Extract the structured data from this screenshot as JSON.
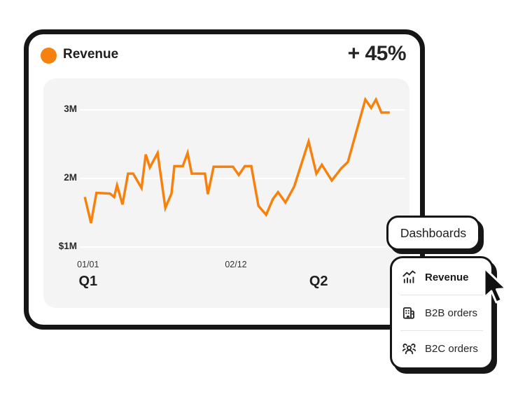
{
  "header": {
    "legend_label": "Revenue",
    "delta": "+ 45%"
  },
  "chart_data": {
    "type": "line",
    "title": "Revenue",
    "series_name": "Revenue",
    "unit": "USD millions",
    "line_color": "#F6820D",
    "grid": true,
    "ylim": [
      1,
      3.3
    ],
    "y_ticks": [
      {
        "label": "3M",
        "value": 3
      },
      {
        "label": "2M",
        "value": 2
      },
      {
        "label": "$1M",
        "value": 1
      }
    ],
    "x_ticks": [
      {
        "label": "01/01",
        "pos": 0.017
      },
      {
        "label": "02/12",
        "pos": 0.476
      }
    ],
    "quarter_labels": [
      {
        "label": "Q1",
        "pos": 0.017
      },
      {
        "label": "Q2",
        "pos": 0.733
      }
    ],
    "points": [
      [
        0.007,
        1.73
      ],
      [
        0.026,
        1.35
      ],
      [
        0.043,
        1.79
      ],
      [
        0.085,
        1.78
      ],
      [
        0.098,
        1.73
      ],
      [
        0.107,
        1.9
      ],
      [
        0.124,
        1.62
      ],
      [
        0.141,
        2.07
      ],
      [
        0.157,
        2.07
      ],
      [
        0.183,
        1.86
      ],
      [
        0.196,
        2.35
      ],
      [
        0.209,
        2.16
      ],
      [
        0.233,
        2.37
      ],
      [
        0.257,
        1.57
      ],
      [
        0.276,
        1.78
      ],
      [
        0.285,
        2.18
      ],
      [
        0.311,
        2.18
      ],
      [
        0.326,
        2.37
      ],
      [
        0.339,
        2.07
      ],
      [
        0.38,
        2.07
      ],
      [
        0.389,
        1.77
      ],
      [
        0.407,
        2.17
      ],
      [
        0.467,
        2.17
      ],
      [
        0.485,
        2.05
      ],
      [
        0.504,
        2.18
      ],
      [
        0.524,
        2.18
      ],
      [
        0.546,
        1.6
      ],
      [
        0.57,
        1.47
      ],
      [
        0.591,
        1.7
      ],
      [
        0.607,
        1.8
      ],
      [
        0.63,
        1.65
      ],
      [
        0.657,
        1.88
      ],
      [
        0.702,
        2.54
      ],
      [
        0.726,
        2.07
      ],
      [
        0.743,
        2.2
      ],
      [
        0.774,
        1.97
      ],
      [
        0.804,
        2.15
      ],
      [
        0.824,
        2.24
      ],
      [
        0.878,
        3.15
      ],
      [
        0.896,
        3.03
      ],
      [
        0.911,
        3.15
      ],
      [
        0.928,
        2.96
      ],
      [
        0.954,
        2.96
      ]
    ]
  },
  "dashboards_button": {
    "label": "Dashboards"
  },
  "menu": {
    "items": [
      {
        "label": "Revenue",
        "icon": "bar-chart-trend-icon",
        "active": true
      },
      {
        "label": "B2B orders",
        "icon": "buildings-icon",
        "active": false
      },
      {
        "label": "B2C orders",
        "icon": "people-group-icon",
        "active": false
      }
    ]
  },
  "colors": {
    "accent_orange": "#F6820D",
    "ink": "#161616",
    "panel_gray": "#F4F4F5",
    "grid_white": "#FFFFFF",
    "divider": "#E3E3E3"
  }
}
